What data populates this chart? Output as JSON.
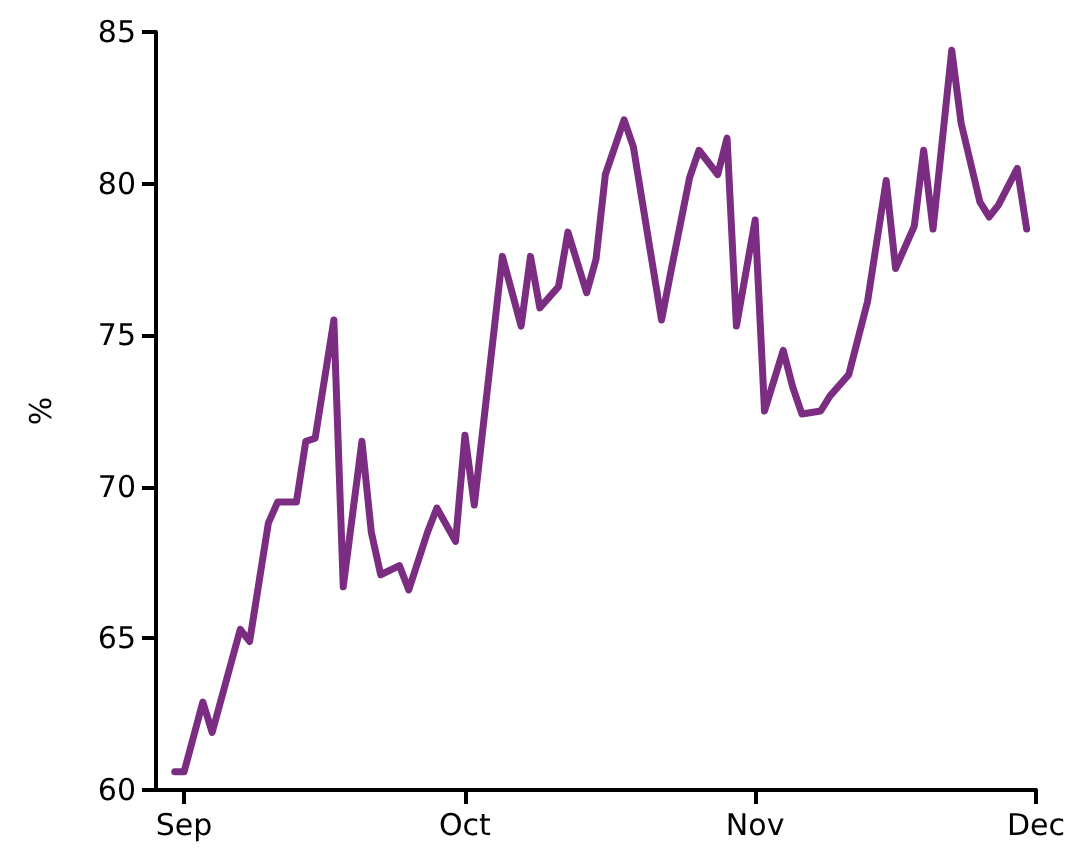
{
  "chart_data": {
    "type": "line",
    "ylabel": "%",
    "x": [
      "--08-31",
      "--09-01",
      "--09-03",
      "--09-04",
      "--09-07",
      "--09-08",
      "--09-10",
      "--09-11",
      "--09-13",
      "--09-14",
      "--09-15",
      "--09-17",
      "--09-18",
      "--09-20",
      "--09-21",
      "--09-22",
      "--09-24",
      "--09-25",
      "--09-27",
      "--09-28",
      "--09-30",
      "--10-01",
      "--10-02",
      "--10-05",
      "--10-07",
      "--10-08",
      "--10-09",
      "--10-11",
      "--10-12",
      "--10-14",
      "--10-15",
      "--10-16",
      "--10-18",
      "--10-19",
      "--10-22",
      "--10-23",
      "--10-25",
      "--10-26",
      "--10-28",
      "--10-29",
      "--10-30",
      "--11-01",
      "--11-02",
      "--11-04",
      "--11-05",
      "--11-06",
      "--11-08",
      "--11-09",
      "--11-11",
      "--11-12",
      "--11-13",
      "--11-15",
      "--11-16",
      "--11-18",
      "--11-19",
      "--11-20",
      "--11-22",
      "--11-23",
      "--11-25",
      "--11-26",
      "--11-27",
      "--11-29",
      "--11-30"
    ],
    "series": [
      {
        "color": "#7b2d82",
        "values": [
          60.6,
          60.6,
          62.9,
          61.9,
          65.3,
          64.9,
          68.8,
          69.5,
          69.5,
          71.5,
          71.6,
          75.5,
          66.7,
          71.5,
          68.5,
          67.1,
          67.4,
          66.6,
          68.5,
          69.3,
          68.2,
          71.7,
          69.4,
          77.6,
          75.3,
          77.6,
          75.9,
          76.6,
          78.4,
          76.4,
          77.5,
          80.3,
          82.1,
          81.2,
          75.5,
          77.1,
          80.2,
          81.1,
          80.3,
          81.5,
          75.3,
          78.8,
          72.5,
          74.5,
          73.3,
          72.4,
          72.5,
          73.0,
          73.7,
          74.9,
          76.1,
          80.1,
          77.2,
          78.6,
          81.1,
          78.5,
          84.4,
          82.0,
          79.4,
          78.9,
          79.3,
          80.5,
          78.5
        ]
      }
    ],
    "xlim": [
      "--08-29",
      "--12-01"
    ],
    "xticks": [
      {
        "value": "--09-01",
        "label": "Sep"
      },
      {
        "value": "--10-01",
        "label": "Oct"
      },
      {
        "value": "--11-01",
        "label": "Nov"
      },
      {
        "value": "--12-01",
        "label": "Dec"
      }
    ],
    "ylim": [
      60,
      85
    ],
    "yticks": [
      60,
      65,
      70,
      75,
      80,
      85
    ],
    "grid": false,
    "marker": "none",
    "line_style": "solid"
  }
}
